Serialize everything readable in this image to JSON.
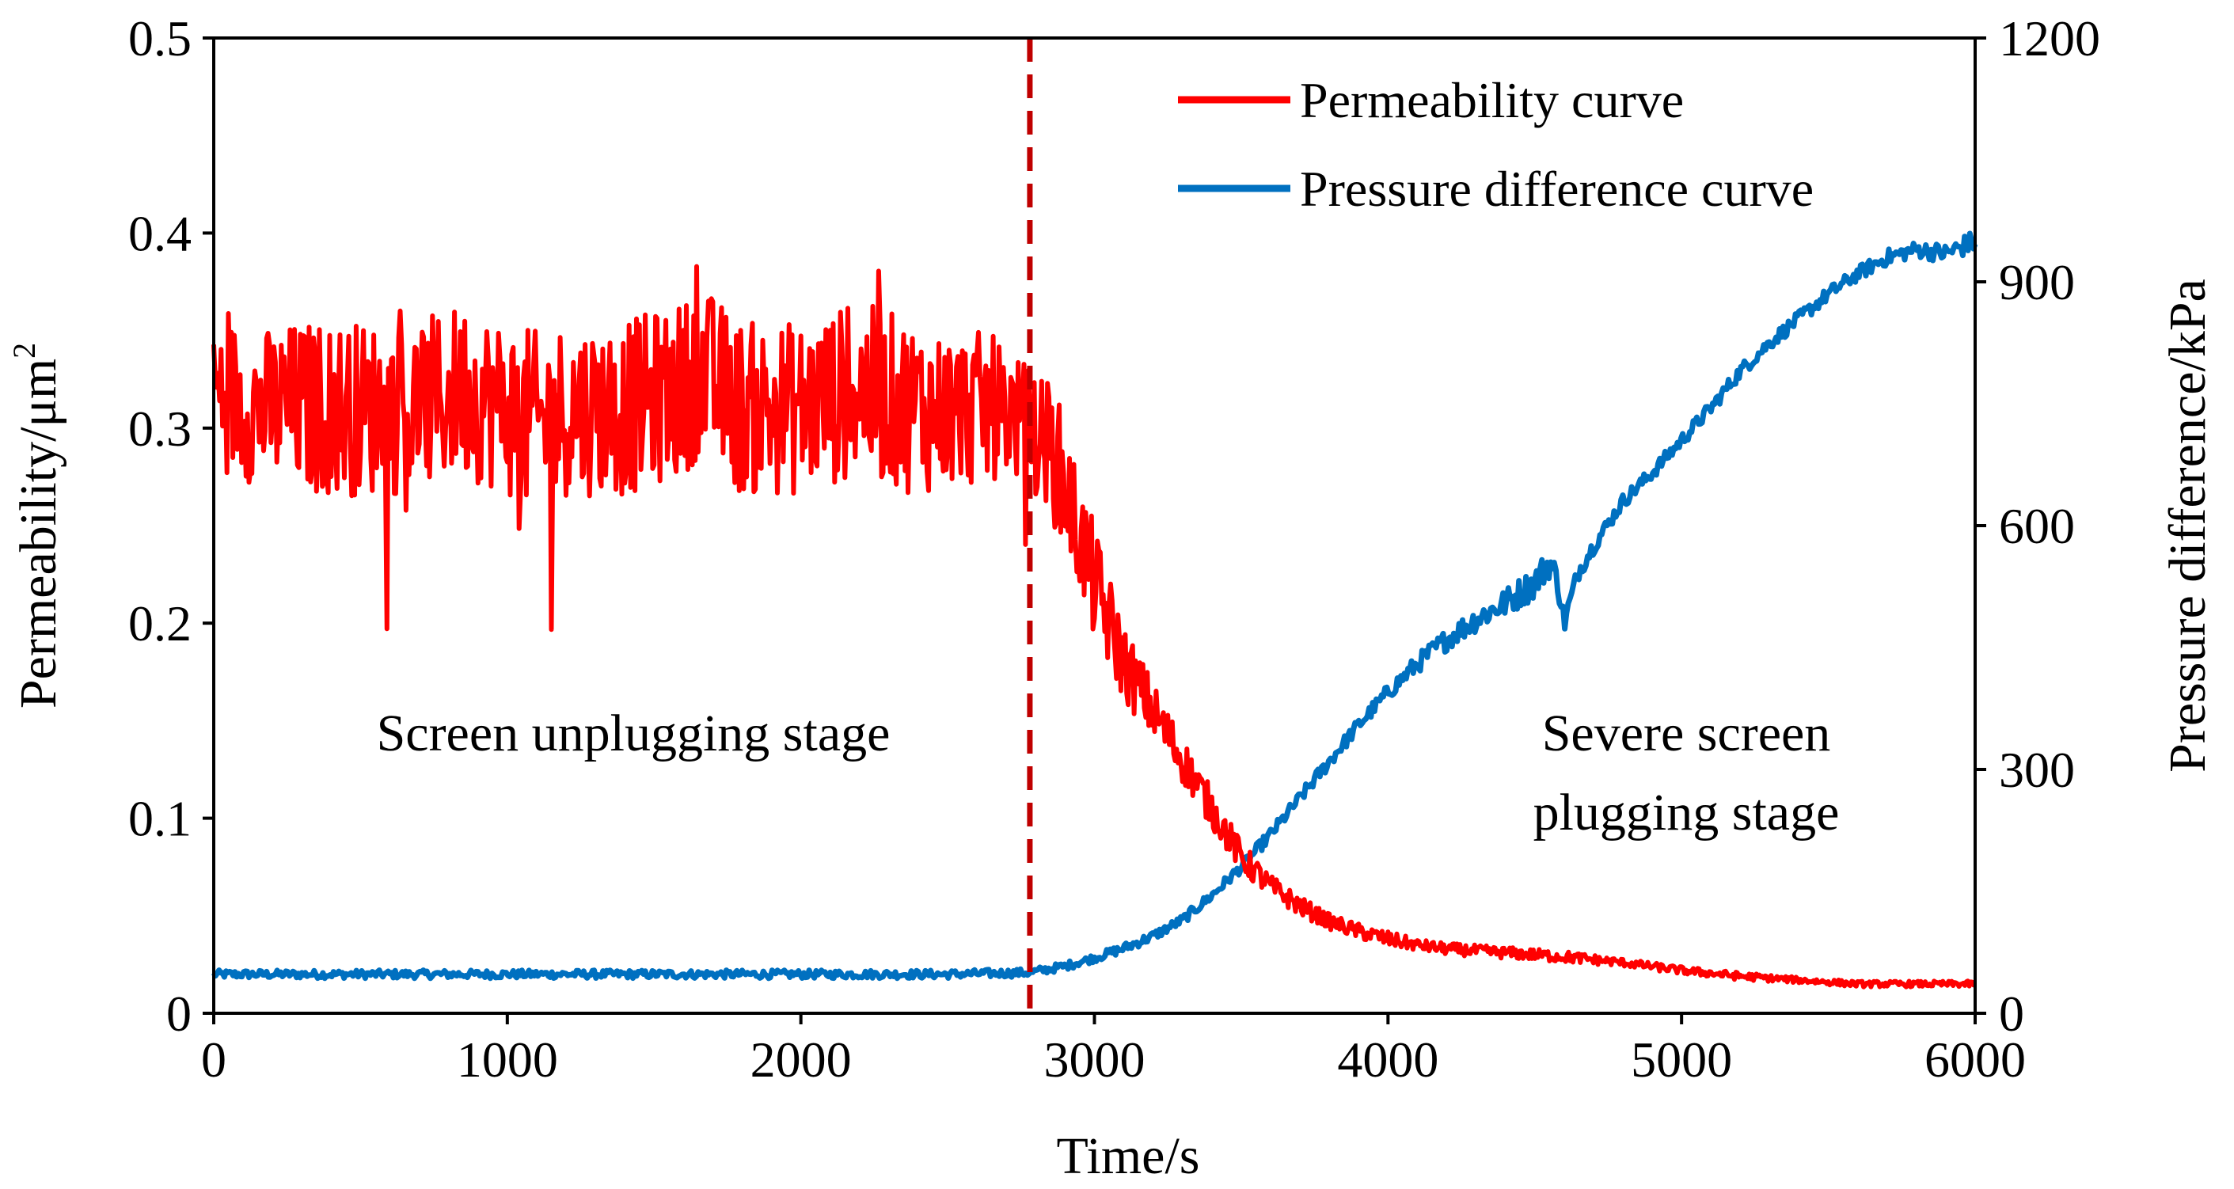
{
  "chart_data": {
    "type": "line",
    "title": "",
    "xlabel": "Time/s",
    "ylabel_left": "Permeability/μm",
    "ylabel_left_sup": "2",
    "ylabel_right": "Pressure difference/kPa",
    "xlim": [
      0,
      6000
    ],
    "ylim_left": [
      0,
      0.5
    ],
    "ylim_right": [
      0,
      1200
    ],
    "x_ticks": [
      0,
      1000,
      2000,
      3000,
      4000,
      5000,
      6000
    ],
    "x_tick_labels": [
      "0",
      "1000",
      "2000",
      "3000",
      "4000",
      "5000",
      "6000"
    ],
    "y_left_ticks": [
      0,
      0.1,
      0.2,
      0.3,
      0.4,
      0.5
    ],
    "y_left_tick_labels": [
      "0",
      "0.1",
      "0.2",
      "0.3",
      "0.4",
      "0.5"
    ],
    "y_right_ticks": [
      0,
      300,
      600,
      900,
      1200
    ],
    "y_right_tick_labels": [
      "0",
      "300",
      "600",
      "900",
      "1200"
    ],
    "grid": false,
    "legend_position": "top-right",
    "divider_x": 2780,
    "annotations": {
      "left_stage": "Screen unplugging stage",
      "right_stage_line1": "Severe screen",
      "right_stage_line2": "plugging stage"
    },
    "series": [
      {
        "name": "Permeability curve",
        "axis": "left",
        "color": "#ff0000",
        "x": [
          0,
          150,
          300,
          500,
          700,
          850,
          1000,
          1100,
          1200,
          1400,
          1600,
          1650,
          1800,
          2000,
          2200,
          2400,
          2500,
          2600,
          2700,
          2780,
          2850,
          2900,
          2950,
          3000,
          3050,
          3100,
          3200,
          3300,
          3400,
          3500,
          3600,
          3700,
          3800,
          3900,
          4000,
          4100,
          4200,
          4400,
          4600,
          4800,
          5000,
          5200,
          5400,
          5600,
          5800,
          6000
        ],
        "values": [
          0.32,
          0.31,
          0.31,
          0.31,
          0.31,
          0.32,
          0.31,
          0.3,
          0.31,
          0.31,
          0.32,
          0.33,
          0.31,
          0.31,
          0.32,
          0.31,
          0.31,
          0.31,
          0.31,
          0.3,
          0.29,
          0.27,
          0.245,
          0.22,
          0.2,
          0.18,
          0.155,
          0.13,
          0.105,
          0.08,
          0.065,
          0.055,
          0.047,
          0.042,
          0.038,
          0.035,
          0.033,
          0.031,
          0.029,
          0.026,
          0.022,
          0.019,
          0.017,
          0.015,
          0.015,
          0.015
        ],
        "noise": [
          0.04,
          0.04,
          0.045,
          0.045,
          0.045,
          0.045,
          0.045,
          0.05,
          0.045,
          0.045,
          0.045,
          0.045,
          0.045,
          0.045,
          0.045,
          0.045,
          0.04,
          0.04,
          0.035,
          0.03,
          0.035,
          0.035,
          0.03,
          0.03,
          0.025,
          0.02,
          0.015,
          0.012,
          0.01,
          0.008,
          0.006,
          0.005,
          0.004,
          0.004,
          0.004,
          0.003,
          0.003,
          0.003,
          0.003,
          0.002,
          0.002,
          0.002,
          0.0015,
          0.0015,
          0.0015,
          0.0015
        ]
      },
      {
        "name": "Pressure difference curve",
        "axis": "right",
        "color": "#0070c0",
        "x": [
          0,
          500,
          1000,
          1500,
          2000,
          2500,
          2780,
          2900,
          3000,
          3100,
          3200,
          3300,
          3400,
          3500,
          3600,
          3700,
          3800,
          3900,
          4000,
          4100,
          4200,
          4300,
          4400,
          4500,
          4550,
          4580,
          4600,
          4650,
          4700,
          4800,
          4900,
          5000,
          5100,
          5200,
          5300,
          5400,
          5500,
          5600,
          5700,
          5800,
          5900,
          6000
        ],
        "values": [
          48,
          48,
          48,
          48,
          48,
          48,
          50,
          58,
          68,
          80,
          95,
          115,
          145,
          180,
          220,
          265,
          310,
          355,
          395,
          430,
          460,
          485,
          505,
          530,
          555,
          530,
          480,
          545,
          575,
          630,
          665,
          705,
          745,
          790,
          825,
          855,
          885,
          910,
          930,
          940,
          935,
          950
        ],
        "noise": [
          5,
          5,
          5,
          5,
          5,
          5,
          5,
          5,
          5,
          6,
          6,
          6,
          7,
          7,
          8,
          8,
          9,
          9,
          10,
          12,
          14,
          16,
          18,
          20,
          20,
          18,
          15,
          12,
          10,
          9,
          9,
          9,
          9,
          9,
          9,
          9,
          9,
          9,
          10,
          10,
          12,
          14
        ]
      }
    ]
  }
}
